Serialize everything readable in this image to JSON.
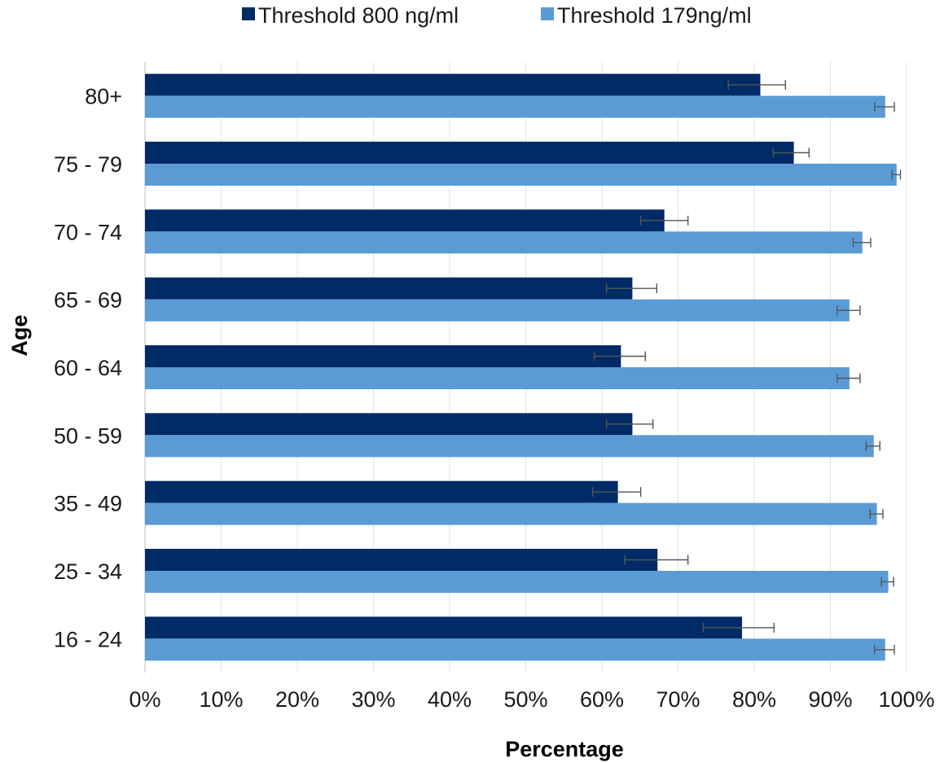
{
  "chart_data": {
    "type": "bar",
    "orientation": "horizontal",
    "title": "",
    "xlabel": "Percentage",
    "ylabel": "Age",
    "xlim": [
      0,
      100
    ],
    "x_ticks": [
      "0%",
      "10%",
      "20%",
      "30%",
      "40%",
      "50%",
      "60%",
      "70%",
      "80%",
      "90%",
      "100%"
    ],
    "grid": "vertical",
    "legend": "top-center",
    "categories": [
      "80+",
      "75 - 79",
      "70 - 74",
      "65 - 69",
      "60 - 64",
      "50 - 59",
      "35 - 49",
      "25 - 34",
      "16 - 24"
    ],
    "series": [
      {
        "name": "Threshold 800 ng/ml",
        "color": "#002b66",
        "values": [
          80.8,
          85.2,
          68.2,
          64.0,
          62.5,
          64.0,
          62.1,
          67.3,
          78.4
        ],
        "error_low": [
          76.6,
          82.5,
          65.1,
          60.6,
          59.0,
          60.6,
          58.8,
          63.0,
          73.3
        ],
        "error_high": [
          84.1,
          87.2,
          71.3,
          67.2,
          65.7,
          66.7,
          65.1,
          71.3,
          82.6
        ]
      },
      {
        "name": "Threshold 179ng/ml",
        "color": "#5b9bd5",
        "values": [
          97.2,
          98.7,
          94.2,
          92.5,
          92.5,
          95.7,
          96.1,
          97.6,
          97.2
        ],
        "error_low": [
          95.8,
          98.1,
          93.0,
          90.9,
          90.9,
          94.7,
          95.2,
          96.7,
          95.8
        ],
        "error_high": [
          98.4,
          99.2,
          95.3,
          93.9,
          93.9,
          96.5,
          96.9,
          98.3,
          98.4
        ]
      }
    ]
  }
}
